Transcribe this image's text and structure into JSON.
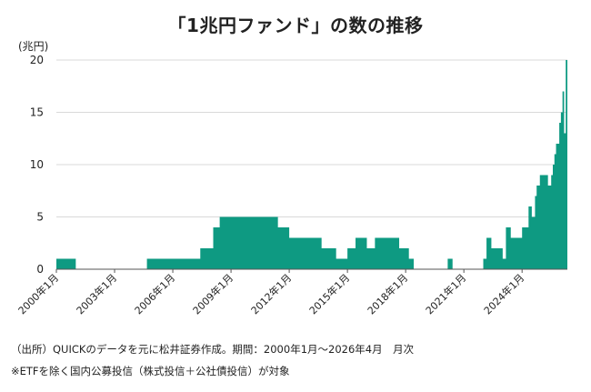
{
  "title": "「1兆円ファンド」の数の推移",
  "unit_label": "(兆円)",
  "footer": {
    "source": "（出所）QUICKのデータを元に松井証券作成。期間：2000年1月～2026年4月　月次",
    "note": "※ETFを除く国内公募投信（株式投信＋公社債投信）が対象"
  },
  "colors": {
    "fill": "#0e9a82",
    "grid": "#d9d9d9",
    "axis": "#555555",
    "text": "#222222"
  },
  "chart_data": {
    "type": "area",
    "step": true,
    "title": "「1兆円ファンド」の数の推移",
    "ylabel": "(兆円)",
    "ylim": [
      0,
      20
    ],
    "yticks": [
      "0",
      "5",
      "10",
      "15",
      "20"
    ],
    "xticks": [
      "2000年1月",
      "2003年1月",
      "2006年1月",
      "2009年1月",
      "2012年1月",
      "2015年1月",
      "2018年1月",
      "2021年1月",
      "2024年1月"
    ],
    "x_range": [
      "2000-01",
      "2026-04"
    ],
    "grid": true,
    "points": [
      [
        "2000-01",
        1
      ],
      [
        "2001-01",
        0
      ],
      [
        "2004-09",
        1
      ],
      [
        "2005-01",
        1
      ],
      [
        "2006-01",
        1
      ],
      [
        "2007-06",
        2
      ],
      [
        "2008-02",
        4
      ],
      [
        "2008-06",
        5
      ],
      [
        "2011-06",
        4
      ],
      [
        "2011-06",
        4
      ],
      [
        "2011-01",
        5
      ],
      [
        "2011-01",
        5
      ]
    ],
    "series": [
      {
        "values": [
          [
            "2000-01",
            1
          ],
          [
            "2001-01",
            0
          ],
          [
            "2004-09",
            1
          ],
          [
            "2007-06",
            2
          ],
          [
            "2008-02",
            4
          ],
          [
            "2008-06",
            5
          ],
          [
            "2011-06",
            4
          ],
          [
            "2012-01",
            3
          ],
          [
            "2013-09",
            2
          ],
          [
            "2014-06",
            1
          ],
          [
            "2015-01",
            2
          ],
          [
            "2015-06",
            3
          ],
          [
            "2016-01",
            2
          ],
          [
            "2016-06",
            3
          ],
          [
            "2017-09",
            2
          ],
          [
            "2018-03",
            1
          ],
          [
            "2018-06",
            0
          ],
          [
            "2020-03",
            1
          ],
          [
            "2020-06",
            0
          ],
          [
            "2022-01",
            1
          ],
          [
            "2022-03",
            3
          ],
          [
            "2022-06",
            2
          ],
          [
            "2023-01",
            1
          ],
          [
            "2023-03",
            4
          ],
          [
            "2023-06",
            3
          ],
          [
            "2024-01",
            4
          ],
          [
            "2024-05",
            6
          ],
          [
            "2024-07",
            5
          ],
          [
            "2024-09",
            7
          ],
          [
            "2024-10",
            8
          ],
          [
            "2024-12",
            9
          ],
          [
            "2025-01",
            9
          ],
          [
            "2025-05",
            8
          ],
          [
            "2025-07",
            9
          ],
          [
            "2025-08",
            10
          ],
          [
            "2025-09",
            11
          ],
          [
            "2025-10",
            12
          ],
          [
            "2025-12",
            14
          ],
          [
            "2026-01",
            15
          ],
          [
            "2026-02",
            17
          ],
          [
            "2026-03",
            13
          ],
          [
            "2026-04",
            20
          ]
        ]
      }
    ]
  }
}
